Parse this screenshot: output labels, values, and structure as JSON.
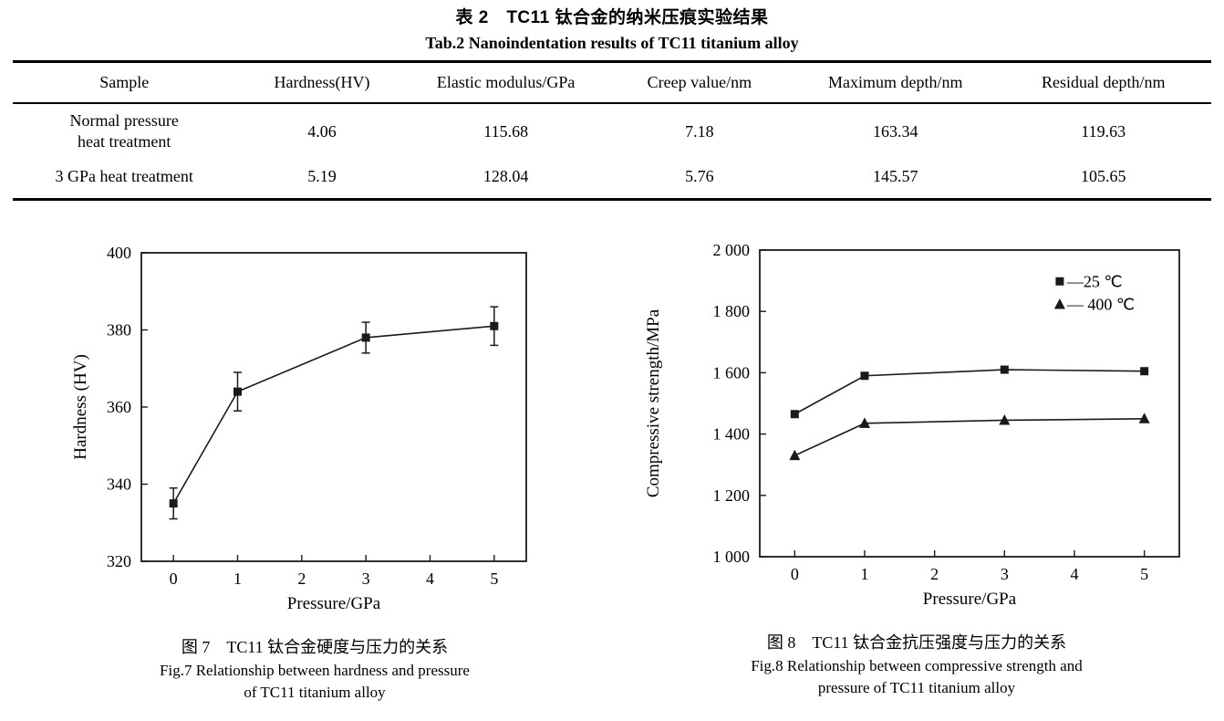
{
  "page": {
    "title_zh": "表 2　TC11 钛合金的纳米压痕实验结果",
    "title_en": "Tab.2 Nanoindentation results of TC11 titanium alloy"
  },
  "colors": {
    "ink": "#1a1a1a",
    "background": "#ffffff",
    "text": "#000000"
  },
  "table": {
    "headers": [
      "Sample",
      "Hardness(HV)",
      "Elastic modulus/GPa",
      "Creep value/nm",
      "Maximum depth/nm",
      "Residual depth/nm"
    ],
    "rows": [
      {
        "sample_lines": [
          "Normal pressure",
          "heat treatment"
        ],
        "values": [
          "4.06",
          "115.68",
          "7.18",
          "163.34",
          "119.63"
        ]
      },
      {
        "sample_lines": [
          "3 GPa heat treatment"
        ],
        "values": [
          "5.19",
          "128.04",
          "5.76",
          "145.57",
          "105.65"
        ]
      }
    ]
  },
  "figures": [
    {
      "caption_zh": "图 7　TC11 钛合金硬度与压力的关系",
      "caption_en_line1": "Fig.7 Relationship between hardness and pressure",
      "caption_en_line2": "of TC11 titanium alloy"
    },
    {
      "caption_zh": "图 8　TC11 钛合金抗压强度与压力的关系",
      "caption_en_line1": "Fig.8 Relationship between compressive strength and",
      "caption_en_line2": "pressure of TC11 titanium alloy"
    }
  ],
  "chart_data": [
    {
      "id": "fig7",
      "type": "line",
      "title": "",
      "xlabel": "Pressure/GPa",
      "ylabel": "Hardness (HV)",
      "x": [
        0,
        1,
        3,
        5
      ],
      "series": [
        {
          "name": "Hardness",
          "marker": "square",
          "values": [
            335,
            364,
            378,
            381
          ],
          "yerr": [
            4,
            5,
            4,
            5
          ]
        }
      ],
      "xlim": [
        -0.5,
        5.5
      ],
      "ylim": [
        320,
        400
      ],
      "xticks": [
        0,
        1,
        2,
        3,
        4,
        5
      ],
      "xtick_labels": [
        "0",
        "1",
        "2",
        "3",
        "4",
        "5"
      ],
      "yticks": [
        320,
        340,
        360,
        380,
        400
      ],
      "ytick_labels": [
        "320",
        "340",
        "360",
        "380",
        "400"
      ],
      "grid": false,
      "legend": null
    },
    {
      "id": "fig8",
      "type": "line",
      "title": "",
      "xlabel": "Pressure/GPa",
      "ylabel": "Compressive strength/MPa",
      "x": [
        0,
        1,
        3,
        5
      ],
      "series": [
        {
          "name": "25 ℃",
          "marker": "square",
          "values": [
            1465,
            1590,
            1610,
            1605
          ]
        },
        {
          "name": "400 ℃",
          "marker": "triangle",
          "values": [
            1330,
            1435,
            1445,
            1450
          ]
        }
      ],
      "xlim": [
        -0.5,
        5.5
      ],
      "ylim": [
        1000,
        2000
      ],
      "xticks": [
        0,
        1,
        2,
        3,
        4,
        5
      ],
      "xtick_labels": [
        "0",
        "1",
        "2",
        "3",
        "4",
        "5"
      ],
      "yticks": [
        1000,
        1200,
        1400,
        1600,
        1800,
        2000
      ],
      "ytick_labels": [
        "1 000",
        "1 200",
        "1 400",
        "1 600",
        "1 800",
        "2 000"
      ],
      "grid": false,
      "legend": {
        "position": "top-right",
        "entries": [
          "—25 ℃",
          "— 400 ℃"
        ]
      }
    }
  ]
}
